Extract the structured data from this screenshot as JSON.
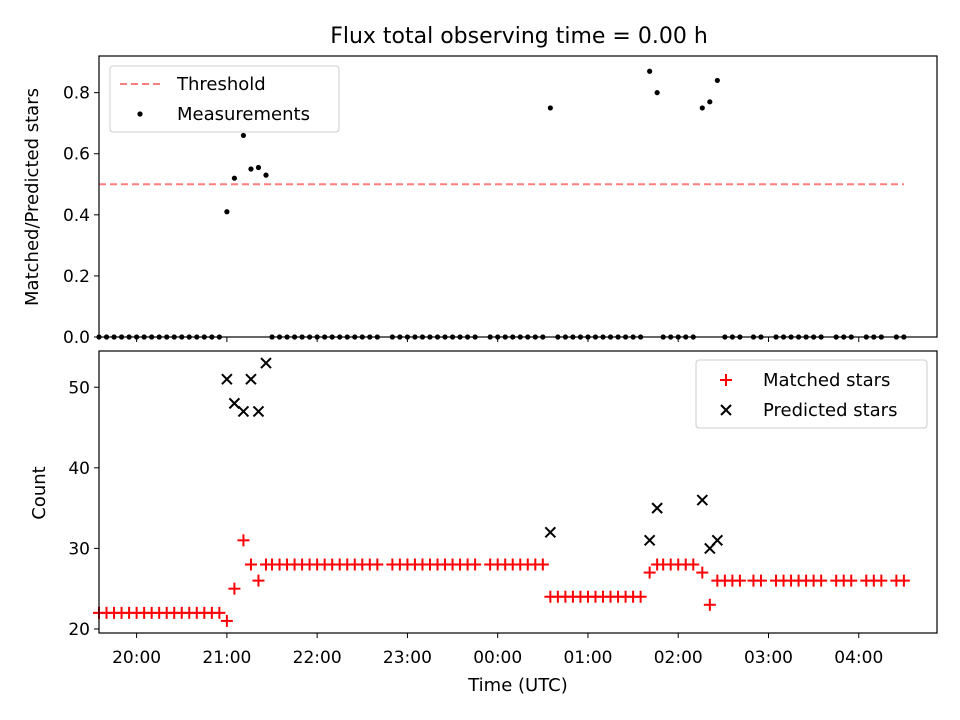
{
  "title": "Flux total observing time = 0.00 h",
  "chart_data": [
    {
      "type": "scatter",
      "ylabel": "Matched/Predicted stars",
      "xlabel": "",
      "xlim": [
        "19:35",
        "04:52"
      ],
      "ylim": [
        0,
        0.92
      ],
      "yticks": [
        0.0,
        0.2,
        0.4,
        0.6,
        0.8
      ],
      "ytick_labels": [
        "0.0",
        "0.2",
        "0.4",
        "0.6",
        "0.8"
      ],
      "legend_position": "top-left",
      "grid": false,
      "threshold": {
        "name": "Threshold",
        "y": 0.5,
        "x_start": "19:35",
        "x_end": "04:30",
        "color": "#ff7f7f",
        "style": "dashed"
      },
      "series": [
        {
          "name": "Measurements",
          "color": "#000000",
          "marker": "dot",
          "points": [
            [
              "21:00",
              0.41
            ],
            [
              "21:05",
              0.52
            ],
            [
              "21:11",
              0.66
            ],
            [
              "21:16",
              0.55
            ],
            [
              "21:21",
              0.555
            ],
            [
              "21:26",
              0.53
            ],
            [
              "00:35",
              0.75
            ],
            [
              "01:41",
              0.87
            ],
            [
              "01:46",
              0.8
            ],
            [
              "02:16",
              0.75
            ],
            [
              "02:21",
              0.77
            ],
            [
              "02:26",
              0.84
            ]
          ],
          "zero_points": [
            "19:35",
            "19:40",
            "19:45",
            "19:50",
            "19:55",
            "20:00",
            "20:05",
            "20:10",
            "20:15",
            "20:20",
            "20:25",
            "20:30",
            "20:35",
            "20:40",
            "20:45",
            "20:50",
            "20:55",
            "21:30",
            "21:35",
            "21:40",
            "21:45",
            "21:50",
            "21:55",
            "22:00",
            "22:05",
            "22:10",
            "22:15",
            "22:20",
            "22:25",
            "22:30",
            "22:35",
            "22:40",
            "22:50",
            "22:55",
            "23:00",
            "23:05",
            "23:10",
            "23:15",
            "23:20",
            "23:25",
            "23:30",
            "23:35",
            "23:40",
            "23:45",
            "23:55",
            "00:00",
            "00:05",
            "00:10",
            "00:15",
            "00:20",
            "00:25",
            "00:30",
            "00:40",
            "00:45",
            "00:50",
            "00:55",
            "01:00",
            "01:05",
            "01:10",
            "01:15",
            "01:20",
            "01:25",
            "01:30",
            "01:35",
            "01:50",
            "01:55",
            "02:00",
            "02:05",
            "02:10",
            "02:31",
            "02:36",
            "02:41",
            "02:50",
            "02:55",
            "03:05",
            "03:10",
            "03:15",
            "03:20",
            "03:25",
            "03:30",
            "03:35",
            "03:45",
            "03:50",
            "03:55",
            "04:05",
            "04:10",
            "04:15",
            "04:25",
            "04:30"
          ]
        }
      ]
    },
    {
      "type": "scatter",
      "ylabel": "Count",
      "xlabel": "Time (UTC)",
      "xlim": [
        "19:35",
        "04:52"
      ],
      "ylim": [
        19.5,
        54.5
      ],
      "yticks": [
        20,
        30,
        40,
        50
      ],
      "ytick_labels": [
        "20",
        "30",
        "40",
        "50"
      ],
      "xticks": [
        "20:00",
        "21:00",
        "22:00",
        "23:00",
        "00:00",
        "01:00",
        "02:00",
        "03:00",
        "04:00"
      ],
      "legend_position": "top-right",
      "grid": false,
      "series": [
        {
          "name": "Matched stars",
          "color": "#ff0000",
          "marker": "plus",
          "points": [
            [
              "19:35",
              22
            ],
            [
              "19:40",
              22
            ],
            [
              "19:45",
              22
            ],
            [
              "19:50",
              22
            ],
            [
              "19:55",
              22
            ],
            [
              "20:00",
              22
            ],
            [
              "20:05",
              22
            ],
            [
              "20:10",
              22
            ],
            [
              "20:15",
              22
            ],
            [
              "20:20",
              22
            ],
            [
              "20:25",
              22
            ],
            [
              "20:30",
              22
            ],
            [
              "20:35",
              22
            ],
            [
              "20:40",
              22
            ],
            [
              "20:45",
              22
            ],
            [
              "20:50",
              22
            ],
            [
              "20:55",
              22
            ],
            [
              "21:00",
              21
            ],
            [
              "21:05",
              25
            ],
            [
              "21:11",
              31
            ],
            [
              "21:16",
              28
            ],
            [
              "21:21",
              26
            ],
            [
              "21:26",
              28
            ],
            [
              "21:30",
              28
            ],
            [
              "21:35",
              28
            ],
            [
              "21:40",
              28
            ],
            [
              "21:45",
              28
            ],
            [
              "21:50",
              28
            ],
            [
              "21:55",
              28
            ],
            [
              "22:00",
              28
            ],
            [
              "22:05",
              28
            ],
            [
              "22:10",
              28
            ],
            [
              "22:15",
              28
            ],
            [
              "22:20",
              28
            ],
            [
              "22:25",
              28
            ],
            [
              "22:30",
              28
            ],
            [
              "22:35",
              28
            ],
            [
              "22:40",
              28
            ],
            [
              "22:50",
              28
            ],
            [
              "22:55",
              28
            ],
            [
              "23:00",
              28
            ],
            [
              "23:05",
              28
            ],
            [
              "23:10",
              28
            ],
            [
              "23:15",
              28
            ],
            [
              "23:20",
              28
            ],
            [
              "23:25",
              28
            ],
            [
              "23:30",
              28
            ],
            [
              "23:35",
              28
            ],
            [
              "23:40",
              28
            ],
            [
              "23:45",
              28
            ],
            [
              "23:55",
              28
            ],
            [
              "00:00",
              28
            ],
            [
              "00:05",
              28
            ],
            [
              "00:10",
              28
            ],
            [
              "00:15",
              28
            ],
            [
              "00:20",
              28
            ],
            [
              "00:25",
              28
            ],
            [
              "00:30",
              28
            ],
            [
              "00:35",
              24
            ],
            [
              "00:40",
              24
            ],
            [
              "00:45",
              24
            ],
            [
              "00:50",
              24
            ],
            [
              "00:55",
              24
            ],
            [
              "01:00",
              24
            ],
            [
              "01:05",
              24
            ],
            [
              "01:10",
              24
            ],
            [
              "01:15",
              24
            ],
            [
              "01:20",
              24
            ],
            [
              "01:25",
              24
            ],
            [
              "01:30",
              24
            ],
            [
              "01:35",
              24
            ],
            [
              "01:41",
              27
            ],
            [
              "01:46",
              28
            ],
            [
              "01:50",
              28
            ],
            [
              "01:55",
              28
            ],
            [
              "02:00",
              28
            ],
            [
              "02:05",
              28
            ],
            [
              "02:10",
              28
            ],
            [
              "02:16",
              27
            ],
            [
              "02:21",
              23
            ],
            [
              "02:26",
              26
            ],
            [
              "02:31",
              26
            ],
            [
              "02:36",
              26
            ],
            [
              "02:41",
              26
            ],
            [
              "02:50",
              26
            ],
            [
              "02:55",
              26
            ],
            [
              "03:05",
              26
            ],
            [
              "03:10",
              26
            ],
            [
              "03:15",
              26
            ],
            [
              "03:20",
              26
            ],
            [
              "03:25",
              26
            ],
            [
              "03:30",
              26
            ],
            [
              "03:35",
              26
            ],
            [
              "03:45",
              26
            ],
            [
              "03:50",
              26
            ],
            [
              "03:55",
              26
            ],
            [
              "04:05",
              26
            ],
            [
              "04:10",
              26
            ],
            [
              "04:15",
              26
            ],
            [
              "04:25",
              26
            ],
            [
              "04:30",
              26
            ]
          ]
        },
        {
          "name": "Predicted stars",
          "color": "#000000",
          "marker": "x",
          "points": [
            [
              "21:00",
              51
            ],
            [
              "21:05",
              48
            ],
            [
              "21:11",
              47
            ],
            [
              "21:16",
              51
            ],
            [
              "21:21",
              47
            ],
            [
              "21:26",
              53
            ],
            [
              "00:35",
              32
            ],
            [
              "01:41",
              31
            ],
            [
              "01:46",
              35
            ],
            [
              "02:16",
              36
            ],
            [
              "02:21",
              30
            ],
            [
              "02:26",
              31
            ]
          ]
        }
      ]
    }
  ]
}
